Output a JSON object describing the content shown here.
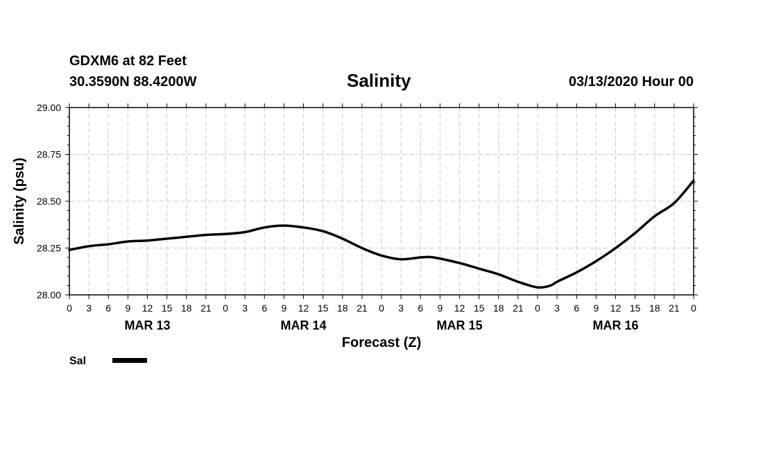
{
  "header": {
    "station": "GDXM6 at 82 Feet",
    "coords": "30.3590N 88.4200W",
    "title": "Salinity",
    "timestamp": "03/13/2020 Hour 00"
  },
  "chart_data": {
    "type": "line",
    "title": "Salinity",
    "xlabel": "Forecast (Z)",
    "ylabel": "Salinity (psu)",
    "ylim": [
      28.0,
      29.0
    ],
    "yticks": [
      "29.00",
      "28.75",
      "28.50",
      "28.25",
      "28.00"
    ],
    "xlim": [
      0,
      96
    ],
    "x_units": "hours from 03/13/2020 00Z",
    "xtick_labels": [
      "0",
      "3",
      "6",
      "9",
      "12",
      "15",
      "18",
      "21",
      "0",
      "3",
      "6",
      "9",
      "12",
      "15",
      "18",
      "21",
      "0",
      "3",
      "6",
      "9",
      "12",
      "15",
      "18",
      "21",
      "0",
      "3",
      "6",
      "9",
      "12",
      "15",
      "18",
      "21",
      "0"
    ],
    "days": [
      {
        "label": "MAR 13",
        "center_hour": 12
      },
      {
        "label": "MAR 14",
        "center_hour": 36
      },
      {
        "label": "MAR 15",
        "center_hour": 60
      },
      {
        "label": "MAR 16",
        "center_hour": 84
      }
    ],
    "grid": true,
    "legend_position": "bottom-left",
    "series": [
      {
        "name": "Sal",
        "color": "#000000",
        "x": [
          0,
          3,
          6,
          9,
          12,
          15,
          18,
          21,
          24,
          27,
          30,
          33,
          36,
          39,
          42,
          45,
          48,
          51,
          54,
          56,
          60,
          63,
          66,
          69,
          72,
          74,
          75,
          78,
          81,
          84,
          87,
          90,
          93,
          96
        ],
        "values": [
          28.24,
          28.26,
          28.27,
          28.285,
          28.29,
          28.3,
          28.31,
          28.32,
          28.325,
          28.335,
          28.36,
          28.37,
          28.36,
          28.34,
          28.3,
          28.25,
          28.21,
          28.19,
          28.2,
          28.2,
          28.17,
          28.14,
          28.11,
          28.07,
          28.04,
          28.05,
          28.07,
          28.12,
          28.18,
          28.25,
          28.33,
          28.42,
          28.49,
          28.61
        ]
      }
    ]
  }
}
